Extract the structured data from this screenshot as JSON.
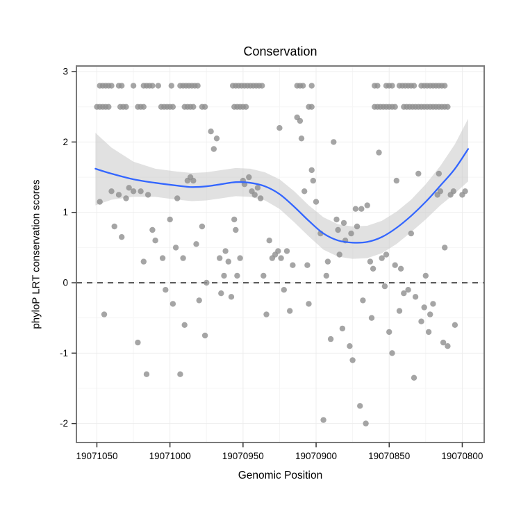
{
  "chart_data": {
    "type": "scatter",
    "title": "Conservation",
    "xlabel": "Genomic Position",
    "ylabel": "phyloP LRT conservation scores",
    "x_ticks": [
      19071050,
      19071000,
      19070950,
      19070900,
      19070850,
      19070800
    ],
    "y_ticks": [
      -2,
      -1,
      0,
      1,
      2,
      3
    ],
    "xlim": [
      19071064,
      19070785
    ],
    "ylim": [
      -2.27,
      3.08
    ],
    "x_axis_reversed": true,
    "grid": true,
    "legend": "none",
    "reference_line": {
      "y": 0,
      "style": "dashed",
      "color": "#000000"
    },
    "colors": {
      "point": "#8f8f8f",
      "smooth_line": "#3366FF",
      "confidence_band": "#c9c9c9",
      "panel_border": "#7a7a7a",
      "grid": "#ededed",
      "grid_minor": "#f5f5f5",
      "text": "#000000",
      "background": "#ffffff"
    },
    "points": [
      [
        19071048,
        1.15
      ],
      [
        19071045,
        -0.45
      ],
      [
        19071040,
        1.3
      ],
      [
        19071038,
        0.8
      ],
      [
        19071035,
        1.25
      ],
      [
        19071033,
        0.65
      ],
      [
        19071030,
        1.2
      ],
      [
        19071028,
        1.35
      ],
      [
        19071025,
        1.3
      ],
      [
        19071022,
        -0.85
      ],
      [
        19071020,
        1.3
      ],
      [
        19071018,
        0.3
      ],
      [
        19071016,
        -1.3
      ],
      [
        19071015,
        1.25
      ],
      [
        19071012,
        0.75
      ],
      [
        19071010,
        0.6
      ],
      [
        19071005,
        0.35
      ],
      [
        19071003,
        -0.1
      ],
      [
        19071000,
        0.9
      ],
      [
        19070998,
        -0.3
      ],
      [
        19070996,
        0.5
      ],
      [
        19070995,
        1.2
      ],
      [
        19070993,
        -1.3
      ],
      [
        19070991,
        0.35
      ],
      [
        19070990,
        -0.6
      ],
      [
        19070988,
        1.45
      ],
      [
        19070986,
        1.5
      ],
      [
        19070984,
        1.45
      ],
      [
        19070982,
        0.55
      ],
      [
        19070980,
        -0.25
      ],
      [
        19070978,
        0.8
      ],
      [
        19070976,
        -0.75
      ],
      [
        19070975,
        0.0
      ],
      [
        19070972,
        2.15
      ],
      [
        19070970,
        1.9
      ],
      [
        19070968,
        2.05
      ],
      [
        19070966,
        0.35
      ],
      [
        19070965,
        -0.15
      ],
      [
        19070963,
        0.1
      ],
      [
        19070962,
        0.45
      ],
      [
        19070960,
        0.3
      ],
      [
        19070958,
        -0.2
      ],
      [
        19070956,
        0.9
      ],
      [
        19070955,
        0.75
      ],
      [
        19070954,
        0.1
      ],
      [
        19070952,
        0.35
      ],
      [
        19070950,
        1.45
      ],
      [
        19070949,
        1.4
      ],
      [
        19070946,
        1.5
      ],
      [
        19070944,
        1.3
      ],
      [
        19070942,
        1.25
      ],
      [
        19070940,
        1.35
      ],
      [
        19070938,
        1.2
      ],
      [
        19070936,
        0.1
      ],
      [
        19070934,
        -0.45
      ],
      [
        19070932,
        0.6
      ],
      [
        19070930,
        0.35
      ],
      [
        19070928,
        0.4
      ],
      [
        19070926,
        0.45
      ],
      [
        19070925,
        2.2
      ],
      [
        19070924,
        0.35
      ],
      [
        19070922,
        -0.1
      ],
      [
        19070920,
        0.45
      ],
      [
        19070918,
        -0.4
      ],
      [
        19070916,
        0.25
      ],
      [
        19070913,
        2.35
      ],
      [
        19070911,
        2.3
      ],
      [
        19070910,
        2.05
      ],
      [
        19070908,
        1.3
      ],
      [
        19070906,
        0.25
      ],
      [
        19070905,
        -0.3
      ],
      [
        19070903,
        1.6
      ],
      [
        19070902,
        1.45
      ],
      [
        19070900,
        1.15
      ],
      [
        19070897,
        0.7
      ],
      [
        19070895,
        -1.95
      ],
      [
        19070893,
        0.1
      ],
      [
        19070892,
        0.3
      ],
      [
        19070890,
        -0.8
      ],
      [
        19070888,
        2.0
      ],
      [
        19070886,
        0.9
      ],
      [
        19070885,
        0.75
      ],
      [
        19070884,
        0.4
      ],
      [
        19070882,
        -0.65
      ],
      [
        19070881,
        0.85
      ],
      [
        19070880,
        0.6
      ],
      [
        19070877,
        -0.9
      ],
      [
        19070876,
        0.7
      ],
      [
        19070875,
        -1.1
      ],
      [
        19070873,
        1.05
      ],
      [
        19070872,
        0.8
      ],
      [
        19070870,
        -1.75
      ],
      [
        19070869,
        1.05
      ],
      [
        19070868,
        -0.25
      ],
      [
        19070866,
        -2.0
      ],
      [
        19070865,
        1.1
      ],
      [
        19070863,
        0.3
      ],
      [
        19070862,
        -0.5
      ],
      [
        19070861,
        0.2
      ],
      [
        19070857,
        1.85
      ],
      [
        19070855,
        0.35
      ],
      [
        19070853,
        -0.05
      ],
      [
        19070852,
        0.4
      ],
      [
        19070850,
        -0.7
      ],
      [
        19070848,
        -1.0
      ],
      [
        19070846,
        0.25
      ],
      [
        19070845,
        1.45
      ],
      [
        19070843,
        -0.4
      ],
      [
        19070842,
        0.2
      ],
      [
        19070840,
        -0.15
      ],
      [
        19070837,
        -0.1
      ],
      [
        19070835,
        0.7
      ],
      [
        19070833,
        -1.35
      ],
      [
        19070832,
        -0.2
      ],
      [
        19070830,
        1.55
      ],
      [
        19070828,
        -0.55
      ],
      [
        19070826,
        -0.35
      ],
      [
        19070825,
        0.1
      ],
      [
        19070823,
        -0.7
      ],
      [
        19070822,
        -0.45
      ],
      [
        19070820,
        -0.3
      ],
      [
        19070817,
        1.25
      ],
      [
        19070816,
        1.55
      ],
      [
        19070815,
        1.3
      ],
      [
        19070813,
        -0.85
      ],
      [
        19070812,
        0.5
      ],
      [
        19070810,
        -0.9
      ],
      [
        19070808,
        1.25
      ],
      [
        19070806,
        1.3
      ],
      [
        19070805,
        -0.6
      ],
      [
        19070800,
        1.25
      ],
      [
        19070798,
        1.3
      ],
      [
        19071048,
        2.8
      ],
      [
        19071046,
        2.8
      ],
      [
        19071044,
        2.8
      ],
      [
        19071042,
        2.8
      ],
      [
        19071040,
        2.8
      ],
      [
        19071035,
        2.8
      ],
      [
        19071033,
        2.8
      ],
      [
        19071025,
        2.8
      ],
      [
        19071018,
        2.8
      ],
      [
        19071016,
        2.8
      ],
      [
        19071014,
        2.8
      ],
      [
        19071012,
        2.8
      ],
      [
        19071008,
        2.8
      ],
      [
        19070999,
        2.8
      ],
      [
        19070993,
        2.8
      ],
      [
        19070991,
        2.8
      ],
      [
        19070989,
        2.8
      ],
      [
        19070987,
        2.8
      ],
      [
        19070985,
        2.8
      ],
      [
        19070983,
        2.8
      ],
      [
        19070981,
        2.8
      ],
      [
        19070957,
        2.8
      ],
      [
        19070955,
        2.8
      ],
      [
        19070953,
        2.8
      ],
      [
        19070951,
        2.8
      ],
      [
        19070949,
        2.8
      ],
      [
        19070947,
        2.8
      ],
      [
        19070945,
        2.8
      ],
      [
        19070943,
        2.8
      ],
      [
        19070941,
        2.8
      ],
      [
        19070939,
        2.8
      ],
      [
        19070937,
        2.8
      ],
      [
        19070913,
        2.8
      ],
      [
        19070911,
        2.8
      ],
      [
        19070909,
        2.8
      ],
      [
        19070903,
        2.8
      ],
      [
        19070860,
        2.8
      ],
      [
        19070858,
        2.8
      ],
      [
        19070852,
        2.8
      ],
      [
        19070850,
        2.8
      ],
      [
        19070848,
        2.8
      ],
      [
        19070843,
        2.8
      ],
      [
        19070841,
        2.8
      ],
      [
        19070839,
        2.8
      ],
      [
        19070837,
        2.8
      ],
      [
        19070835,
        2.8
      ],
      [
        19070833,
        2.8
      ],
      [
        19070828,
        2.8
      ],
      [
        19070826,
        2.8
      ],
      [
        19070824,
        2.8
      ],
      [
        19070822,
        2.8
      ],
      [
        19070820,
        2.8
      ],
      [
        19070818,
        2.8
      ],
      [
        19070816,
        2.8
      ],
      [
        19070814,
        2.8
      ],
      [
        19070812,
        2.8
      ],
      [
        19071050,
        2.5
      ],
      [
        19071048,
        2.5
      ],
      [
        19071046,
        2.5
      ],
      [
        19071044,
        2.5
      ],
      [
        19071042,
        2.5
      ],
      [
        19071034,
        2.5
      ],
      [
        19071032,
        2.5
      ],
      [
        19071030,
        2.5
      ],
      [
        19071022,
        2.5
      ],
      [
        19071020,
        2.5
      ],
      [
        19071018,
        2.5
      ],
      [
        19071006,
        2.5
      ],
      [
        19071004,
        2.5
      ],
      [
        19071002,
        2.5
      ],
      [
        19071000,
        2.5
      ],
      [
        19070998,
        2.5
      ],
      [
        19070990,
        2.5
      ],
      [
        19070988,
        2.5
      ],
      [
        19070986,
        2.5
      ],
      [
        19070984,
        2.5
      ],
      [
        19070978,
        2.5
      ],
      [
        19070976,
        2.5
      ],
      [
        19070956,
        2.5
      ],
      [
        19070954,
        2.5
      ],
      [
        19070952,
        2.5
      ],
      [
        19070950,
        2.5
      ],
      [
        19070948,
        2.5
      ],
      [
        19070905,
        2.5
      ],
      [
        19070903,
        2.5
      ],
      [
        19070860,
        2.5
      ],
      [
        19070858,
        2.5
      ],
      [
        19070856,
        2.5
      ],
      [
        19070854,
        2.5
      ],
      [
        19070852,
        2.5
      ],
      [
        19070850,
        2.5
      ],
      [
        19070848,
        2.5
      ],
      [
        19070846,
        2.5
      ],
      [
        19070840,
        2.5
      ],
      [
        19070838,
        2.5
      ],
      [
        19070836,
        2.5
      ],
      [
        19070834,
        2.5
      ],
      [
        19070832,
        2.5
      ],
      [
        19070830,
        2.5
      ],
      [
        19070828,
        2.5
      ],
      [
        19070826,
        2.5
      ],
      [
        19070824,
        2.5
      ],
      [
        19070822,
        2.5
      ],
      [
        19070820,
        2.5
      ],
      [
        19070818,
        2.5
      ],
      [
        19070816,
        2.5
      ],
      [
        19070814,
        2.5
      ],
      [
        19070812,
        2.5
      ],
      [
        19070810,
        2.5
      ]
    ],
    "smooth_line": [
      [
        19071051,
        1.62
      ],
      [
        19071040,
        1.55
      ],
      [
        19071025,
        1.47
      ],
      [
        19071010,
        1.42
      ],
      [
        19070995,
        1.38
      ],
      [
        19070985,
        1.36
      ],
      [
        19070975,
        1.37
      ],
      [
        19070965,
        1.4
      ],
      [
        19070955,
        1.43
      ],
      [
        19070945,
        1.42
      ],
      [
        19070935,
        1.37
      ],
      [
        19070925,
        1.26
      ],
      [
        19070915,
        1.08
      ],
      [
        19070905,
        0.88
      ],
      [
        19070895,
        0.7
      ],
      [
        19070885,
        0.6
      ],
      [
        19070875,
        0.57
      ],
      [
        19070865,
        0.58
      ],
      [
        19070855,
        0.65
      ],
      [
        19070845,
        0.78
      ],
      [
        19070835,
        0.95
      ],
      [
        19070825,
        1.15
      ],
      [
        19070815,
        1.38
      ],
      [
        19070805,
        1.62
      ],
      [
        19070796,
        1.9
      ]
    ],
    "confidence_band": [
      [
        19071051,
        1.1,
        2.13
      ],
      [
        19071040,
        1.18,
        1.92
      ],
      [
        19071025,
        1.22,
        1.72
      ],
      [
        19071010,
        1.22,
        1.62
      ],
      [
        19070995,
        1.18,
        1.58
      ],
      [
        19070985,
        1.16,
        1.56
      ],
      [
        19070975,
        1.17,
        1.57
      ],
      [
        19070965,
        1.2,
        1.6
      ],
      [
        19070955,
        1.23,
        1.63
      ],
      [
        19070945,
        1.22,
        1.62
      ],
      [
        19070935,
        1.17,
        1.57
      ],
      [
        19070925,
        1.05,
        1.47
      ],
      [
        19070915,
        0.86,
        1.3
      ],
      [
        19070905,
        0.66,
        1.1
      ],
      [
        19070895,
        0.47,
        0.93
      ],
      [
        19070885,
        0.37,
        0.83
      ],
      [
        19070875,
        0.34,
        0.8
      ],
      [
        19070865,
        0.35,
        0.81
      ],
      [
        19070855,
        0.42,
        0.88
      ],
      [
        19070845,
        0.55,
        1.01
      ],
      [
        19070835,
        0.72,
        1.18
      ],
      [
        19070825,
        0.9,
        1.4
      ],
      [
        19070815,
        1.1,
        1.66
      ],
      [
        19070805,
        1.27,
        1.97
      ],
      [
        19070796,
        1.44,
        2.33
      ]
    ]
  }
}
